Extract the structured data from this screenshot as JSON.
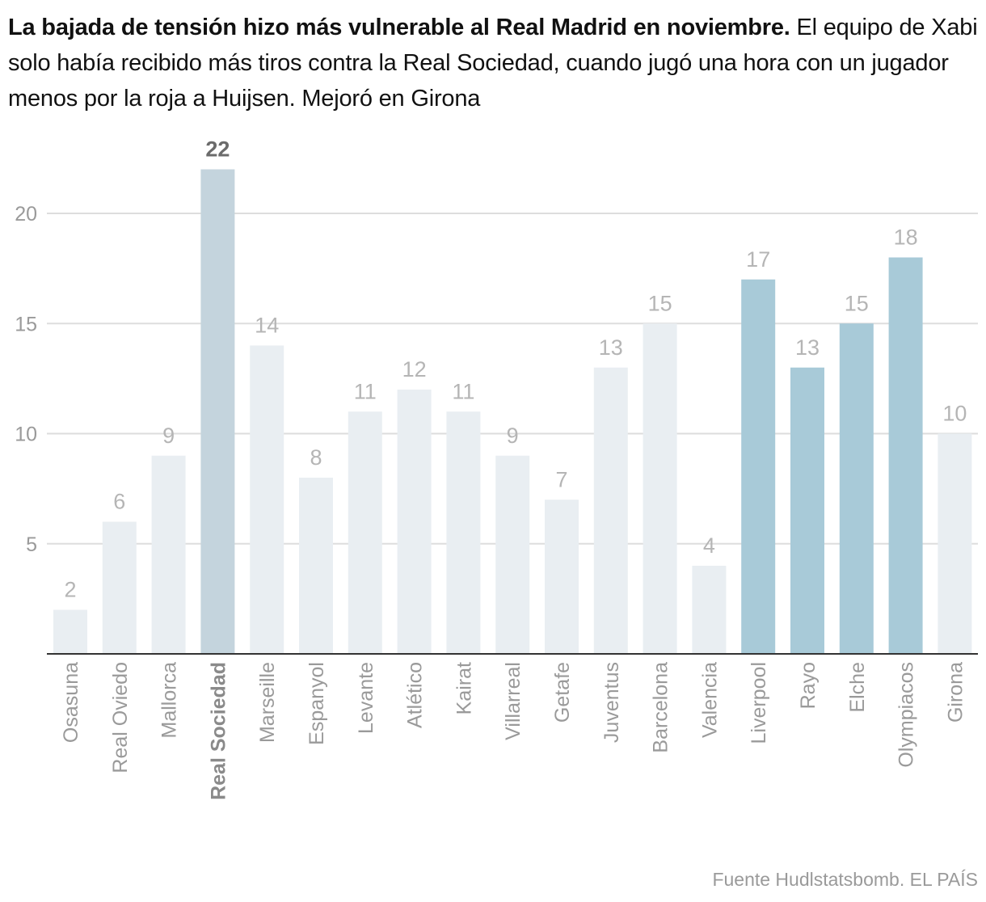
{
  "headline": {
    "lead": "La bajada de tensión hizo más vulnerable al Real Madrid en noviembre.",
    "body": "El equipo de Xabi solo había recibido más tiros contra la Real Sociedad, cuando jugó una hora con un jugador menos por la roja a Huijsen. Mejoró en Girona"
  },
  "source": "Fuente Hudlstatsbomb. EL PAÍS",
  "chart_data": {
    "type": "bar",
    "categories": [
      "Osasuna",
      "Real Oviedo",
      "Mallorca",
      "Real Sociedad",
      "Marseille",
      "Espanyol",
      "Levante",
      "Atlético",
      "Kairat",
      "Villarreal",
      "Getafe",
      "Juventus",
      "Barcelona",
      "Valencia",
      "Liverpool",
      "Rayo",
      "Elche",
      "Olympiacos",
      "Girona"
    ],
    "values": [
      2,
      6,
      9,
      22,
      14,
      8,
      11,
      12,
      11,
      9,
      7,
      13,
      15,
      4,
      17,
      13,
      15,
      18,
      10
    ],
    "highlighted": [
      "Real Sociedad"
    ],
    "november": [
      "Liverpool",
      "Rayo",
      "Elche",
      "Olympiacos"
    ],
    "yticks": [
      5,
      10,
      15,
      20
    ],
    "ylim": [
      0,
      22
    ],
    "grid": true,
    "colors": {
      "default": "#e9eef2",
      "highlight": "#c4d4dd",
      "november": "#a8cad8",
      "grid": "#dddddd",
      "axis": "#333333"
    }
  }
}
